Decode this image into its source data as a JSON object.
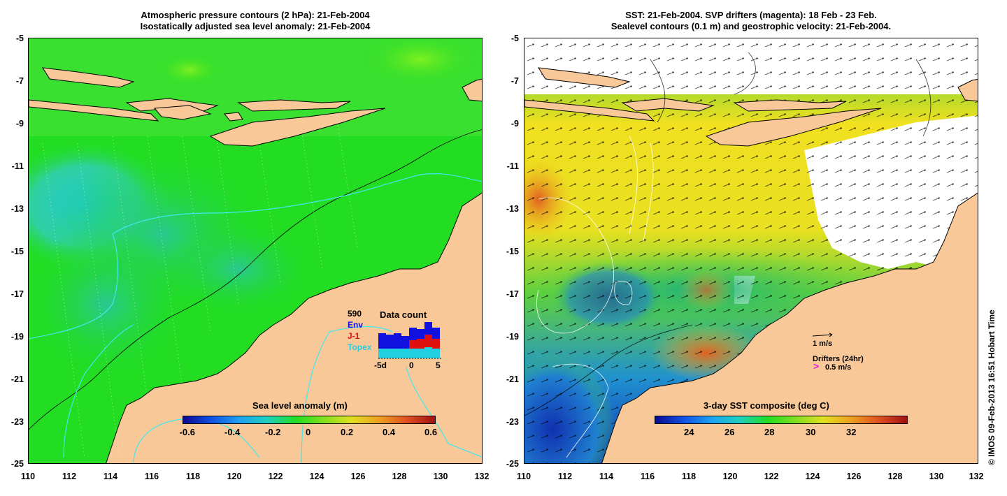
{
  "left_panel": {
    "title_line1": "Atmospheric pressure contours (2 hPa): 21-Feb-2004",
    "title_line2": "Isostatically adjusted sea level anomaly: 21-Feb-2004",
    "colorbar_label": "Sea level anomaly (m)",
    "colorbar_ticks": [
      "-0.6",
      "-0.4",
      "-0.2",
      "0",
      "0.2",
      "0.4",
      "0.6"
    ],
    "data_count": {
      "title": "Data count",
      "max_label": "590",
      "legend": [
        "Env",
        "J-1",
        "Topex"
      ],
      "legend_colors": [
        "#1010e0",
        "#e01010",
        "#20d0e0"
      ],
      "x_ticks": [
        "-5d",
        "0",
        "5"
      ]
    }
  },
  "right_panel": {
    "title_line1": "SST: 21-Feb-2004. SVP drifters (magenta): 18 Feb - 23 Feb.",
    "title_line2": "Sealevel contours (0.1 m) and geostrophic velocity: 21-Feb-2004.",
    "colorbar_label": "3-day SST composite (deg C)",
    "colorbar_ticks": [
      "24",
      "26",
      "28",
      "30",
      "32"
    ],
    "velocity_scale_label": "1 m/s",
    "drifters_label": "Drifters (24hr)",
    "drifter_scale_label": "0.5 m/s",
    "drifter_color": "#e020e0"
  },
  "axes": {
    "lat_ticks": [
      "-5",
      "-7",
      "-9",
      "-11",
      "-13",
      "-15",
      "-17",
      "-19",
      "-21",
      "-23",
      "-25"
    ],
    "lon_ticks": [
      "110",
      "112",
      "114",
      "116",
      "118",
      "120",
      "122",
      "124",
      "126",
      "128",
      "130",
      "132"
    ]
  },
  "credit": "© IMOS 09-Feb-2013 16:51 Hobart Time",
  "colors": {
    "land": "#f8c898",
    "sea_green": "#22dd22",
    "sea_cyan": "#20d0d0",
    "sst_warm": "#f0e020",
    "sst_cool": "#1030c0"
  }
}
